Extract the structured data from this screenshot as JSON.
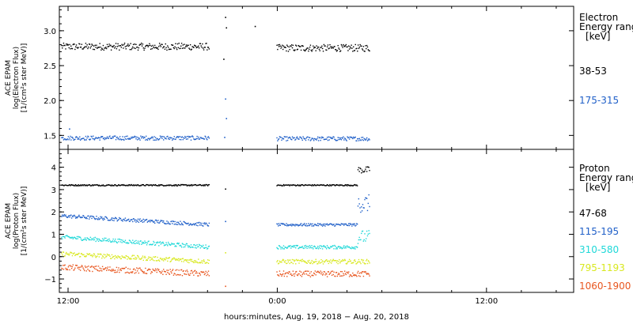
{
  "colors": {
    "black": "#000000",
    "blue": "#1f5fc8",
    "cyan": "#1fd8d8",
    "yellow": "#d8e81f",
    "orange": "#e8561f"
  },
  "chart_data": [
    {
      "type": "scatter",
      "ylabel_lines": [
        "ACE EPAM",
        "log(Electron Flux)",
        "[1/(cm²s ster MeV)]"
      ],
      "ylim": [
        1.3,
        3.35
      ],
      "yticks": [
        1.5,
        2.0,
        2.5,
        3.0
      ],
      "ytick_labels": [
        "1.5",
        "2.0",
        "2.5",
        "3.0"
      ],
      "legend_title": [
        "Electron",
        "Energy range",
        "[keV]"
      ],
      "xlim_hours": [
        11.5,
        41.0
      ],
      "series": [
        {
          "name": "38-53",
          "color": "#000000",
          "segments": [
            {
              "from": 11.6,
              "to": 20.1,
              "level": 2.78,
              "noise": 0.05
            },
            {
              "from": 23.95,
              "to": 29.3,
              "level": 2.76,
              "noise": 0.05
            }
          ],
          "extra": [
            [
              20.9,
              2.6
            ],
            [
              21.0,
              3.2
            ],
            [
              21.05,
              3.05
            ],
            [
              22.7,
              3.07
            ]
          ]
        },
        {
          "name": "175-315",
          "color": "#1f5fc8",
          "segments": [
            {
              "from": 11.6,
              "to": 20.1,
              "level": 1.47,
              "noise": 0.03
            },
            {
              "from": 23.95,
              "to": 29.3,
              "level": 1.46,
              "noise": 0.03
            }
          ],
          "extra": [
            [
              12.05,
              1.6
            ],
            [
              20.95,
              1.48
            ],
            [
              21.0,
              2.03
            ],
            [
              21.05,
              1.75
            ]
          ]
        }
      ]
    },
    {
      "type": "scatter",
      "ylabel_lines": [
        "ACE EPAM",
        "log(Proton Flux)",
        "[1/(cm²s ster MeV)]"
      ],
      "ylim": [
        -1.6,
        4.8
      ],
      "yticks": [
        -1,
        0,
        1,
        2,
        3,
        4
      ],
      "ytick_labels": [
        "−1",
        "0",
        "1",
        "2",
        "3",
        "4"
      ],
      "legend_title": [
        "Proton",
        "Energy range",
        "[keV]"
      ],
      "xlim_hours": [
        11.5,
        41.0
      ],
      "xticks_hours": [
        12,
        24,
        36
      ],
      "xtick_labels": [
        "12:00",
        "0:00",
        "12:00"
      ],
      "xlabel": "hours:minutes, Aug. 19, 2018 − Aug. 20, 2018",
      "series": [
        {
          "name": "47-68",
          "color": "#000000",
          "segments": [
            {
              "from": 11.6,
              "to": 20.1,
              "level": 3.22,
              "noise": 0.03
            },
            {
              "from": 23.95,
              "to": 28.6,
              "level": 3.22,
              "noise": 0.03
            },
            {
              "from": 28.6,
              "to": 29.3,
              "level": 3.9,
              "noise": 0.15
            }
          ],
          "extra": [
            [
              21.0,
              3.05
            ]
          ]
        },
        {
          "name": "115-195",
          "color": "#1f5fc8",
          "segments": [
            {
              "from": 11.6,
              "to": 20.1,
              "level": 1.6,
              "noise": 0.08,
              "trend": [
                1.85,
                1.45
              ]
            },
            {
              "from": 23.95,
              "to": 28.6,
              "level": 1.45,
              "noise": 0.06
            },
            {
              "from": 28.6,
              "to": 29.3,
              "level": 2.4,
              "noise": 0.4
            }
          ],
          "extra": [
            [
              21.0,
              1.6
            ]
          ]
        },
        {
          "name": "310-580",
          "color": "#1fd8d8",
          "segments": [
            {
              "from": 11.6,
              "to": 20.1,
              "level": 0.65,
              "noise": 0.09,
              "trend": [
                0.9,
                0.45
              ]
            },
            {
              "from": 23.95,
              "to": 28.6,
              "level": 0.45,
              "noise": 0.08
            },
            {
              "from": 28.6,
              "to": 29.3,
              "level": 0.9,
              "noise": 0.3
            }
          ],
          "extra": []
        },
        {
          "name": "795-1193",
          "color": "#d8e81f",
          "segments": [
            {
              "from": 11.6,
              "to": 20.1,
              "level": 0.0,
              "noise": 0.1,
              "trend": [
                0.15,
                -0.2
              ]
            },
            {
              "from": 23.95,
              "to": 29.3,
              "level": -0.2,
              "noise": 0.1
            }
          ],
          "extra": [
            [
              21.0,
              0.2
            ]
          ]
        },
        {
          "name": "1060-1900",
          "color": "#e8561f",
          "segments": [
            {
              "from": 11.6,
              "to": 20.1,
              "level": -0.55,
              "noise": 0.13,
              "trend": [
                -0.45,
                -0.75
              ]
            },
            {
              "from": 23.95,
              "to": 29.3,
              "level": -0.75,
              "noise": 0.13
            }
          ],
          "extra": [
            [
              21.0,
              -1.3
            ]
          ]
        }
      ]
    }
  ]
}
